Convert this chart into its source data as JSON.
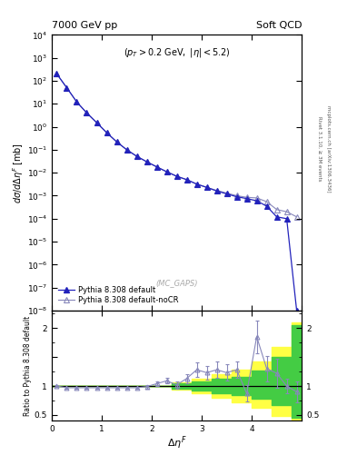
{
  "title_left": "7000 GeV pp",
  "title_right": "Soft QCD",
  "watermark": "(MC_GAPS)",
  "ylabel_main": "d\\sigma/d\\Delta\\eta^{F} [mb]",
  "ylabel_ratio": "Ratio to Pythia 8.308 default",
  "xlabel": "\\Delta\\eta^{F}",
  "right_label1": "Rivet 3.1.10, ≥ 3M events",
  "right_label2": "mcplots.cern.ch [arXiv:1306.3436]",
  "ylim_main": [
    1e-08,
    10000.0
  ],
  "xlim": [
    0,
    5.0
  ],
  "ylim_ratio": [
    0.4,
    2.3
  ],
  "x_main": [
    0.1,
    0.3,
    0.5,
    0.7,
    0.9,
    1.1,
    1.3,
    1.5,
    1.7,
    1.9,
    2.1,
    2.3,
    2.5,
    2.7,
    2.9,
    3.1,
    3.3,
    3.5,
    3.7,
    3.9,
    4.1,
    4.3,
    4.5,
    4.7,
    4.9
  ],
  "y_default": [
    200,
    50,
    12,
    4.0,
    1.5,
    0.55,
    0.22,
    0.1,
    0.052,
    0.03,
    0.018,
    0.011,
    0.007,
    0.005,
    0.0032,
    0.0023,
    0.0016,
    0.0012,
    0.0009,
    0.00075,
    0.0006,
    0.00035,
    0.00012,
    0.0001,
    1e-08
  ],
  "y_noCR": [
    200,
    50,
    12,
    4.0,
    1.5,
    0.55,
    0.22,
    0.1,
    0.052,
    0.03,
    0.018,
    0.011,
    0.007,
    0.005,
    0.0032,
    0.0023,
    0.0017,
    0.0013,
    0.001,
    0.00085,
    0.0008,
    0.00055,
    0.00025,
    0.0002,
    0.00012
  ],
  "color_default": "#2222bb",
  "color_noCR": "#8888bb",
  "ratio_x": [
    0.1,
    0.3,
    0.5,
    0.7,
    0.9,
    1.1,
    1.3,
    1.5,
    1.7,
    1.9,
    2.1,
    2.3,
    2.5,
    2.7,
    2.9,
    3.1,
    3.3,
    3.5,
    3.7,
    3.9,
    4.1,
    4.3,
    4.5,
    4.7,
    4.9
  ],
  "ratio_y": [
    1.0,
    0.97,
    0.97,
    0.97,
    0.97,
    0.97,
    0.97,
    0.97,
    0.97,
    0.99,
    1.04,
    1.09,
    1.02,
    1.13,
    1.28,
    1.23,
    1.28,
    1.23,
    1.28,
    0.87,
    1.85,
    1.3,
    1.22,
    1.0,
    0.9
  ],
  "ratio_yerr": [
    0.02,
    0.02,
    0.02,
    0.02,
    0.02,
    0.02,
    0.02,
    0.02,
    0.02,
    0.03,
    0.04,
    0.05,
    0.06,
    0.08,
    0.12,
    0.12,
    0.14,
    0.14,
    0.14,
    0.14,
    0.28,
    0.22,
    0.25,
    0.12,
    0.18
  ],
  "yellow_band_x": [
    0.0,
    2.0,
    2.4,
    2.8,
    3.2,
    3.6,
    4.0,
    4.4,
    4.8,
    5.0
  ],
  "yellow_band_lo": [
    1.0,
    1.0,
    0.93,
    0.87,
    0.8,
    0.72,
    0.62,
    0.48,
    0.38,
    0.38
  ],
  "yellow_band_hi": [
    1.0,
    1.0,
    1.07,
    1.13,
    1.2,
    1.28,
    1.42,
    1.68,
    2.1,
    2.1
  ],
  "green_band_x": [
    0.0,
    2.0,
    2.4,
    2.8,
    3.2,
    3.6,
    4.0,
    4.4,
    4.8,
    5.0
  ],
  "green_band_lo": [
    1.0,
    1.0,
    0.96,
    0.92,
    0.88,
    0.84,
    0.78,
    0.67,
    0.45,
    0.45
  ],
  "green_band_hi": [
    1.0,
    1.0,
    1.04,
    1.08,
    1.12,
    1.16,
    1.26,
    1.5,
    2.05,
    2.05
  ]
}
